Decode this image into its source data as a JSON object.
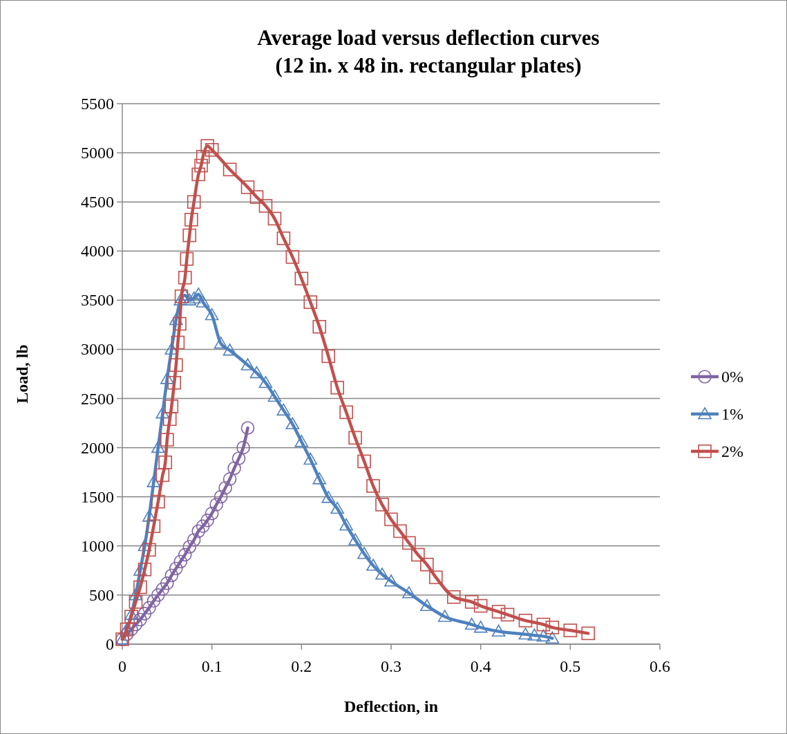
{
  "chart_data": {
    "type": "line",
    "title": "Average load versus deflection curves\n(12 in. x 48 in. rectangular plates)",
    "xlabel": "Deflection,  in",
    "ylabel": "Load,  lb",
    "xlim": [
      0,
      0.6
    ],
    "xticks": [
      0,
      0.1,
      0.2,
      0.3,
      0.4,
      0.5,
      0.6
    ],
    "ylim": [
      0,
      5500
    ],
    "yticks": [
      0,
      500,
      1000,
      1500,
      2000,
      2500,
      3000,
      3500,
      4000,
      4500,
      5000,
      5500
    ],
    "grid": "y",
    "legend": "right",
    "line_style": "solid",
    "series": [
      {
        "name": "0%",
        "color": "#8064a2",
        "marker": "circle",
        "x": [
          0,
          0.005,
          0.01,
          0.015,
          0.02,
          0.025,
          0.03,
          0.035,
          0.04,
          0.045,
          0.05,
          0.055,
          0.06,
          0.065,
          0.07,
          0.075,
          0.08,
          0.085,
          0.09,
          0.095,
          0.1,
          0.105,
          0.11,
          0.115,
          0.12,
          0.125,
          0.13,
          0.135,
          0.14
        ],
        "values": [
          50,
          100,
          150,
          200,
          250,
          310,
          370,
          440,
          500,
          560,
          620,
          700,
          770,
          840,
          910,
          990,
          1060,
          1150,
          1200,
          1260,
          1330,
          1420,
          1500,
          1590,
          1680,
          1790,
          1890,
          2000,
          2200
        ]
      },
      {
        "name": "1%",
        "color": "#4f81bd",
        "marker": "triangle",
        "x": [
          0,
          0.005,
          0.01,
          0.015,
          0.02,
          0.025,
          0.03,
          0.035,
          0.04,
          0.045,
          0.05,
          0.055,
          0.06,
          0.065,
          0.07,
          0.075,
          0.08,
          0.085,
          0.09,
          0.1,
          0.11,
          0.12,
          0.14,
          0.15,
          0.16,
          0.17,
          0.18,
          0.19,
          0.2,
          0.21,
          0.22,
          0.23,
          0.24,
          0.25,
          0.26,
          0.27,
          0.28,
          0.29,
          0.3,
          0.32,
          0.34,
          0.36,
          0.39,
          0.4,
          0.42,
          0.45,
          0.46,
          0.47,
          0.48
        ],
        "values": [
          50,
          150,
          300,
          500,
          750,
          1000,
          1300,
          1650,
          2000,
          2350,
          2700,
          3000,
          3300,
          3500,
          3550,
          3500,
          3520,
          3560,
          3480,
          3350,
          3060,
          2990,
          2840,
          2760,
          2660,
          2520,
          2380,
          2240,
          2060,
          1880,
          1680,
          1490,
          1380,
          1210,
          1060,
          920,
          800,
          710,
          640,
          520,
          390,
          280,
          200,
          170,
          130,
          100,
          90,
          80,
          60
        ]
      },
      {
        "name": "2%",
        "color": "#c0504d",
        "marker": "square",
        "x": [
          0,
          0.005,
          0.01,
          0.015,
          0.02,
          0.025,
          0.03,
          0.035,
          0.04,
          0.045,
          0.048,
          0.05,
          0.053,
          0.055,
          0.058,
          0.06,
          0.062,
          0.064,
          0.066,
          0.07,
          0.072,
          0.075,
          0.077,
          0.08,
          0.085,
          0.088,
          0.09,
          0.095,
          0.1,
          0.12,
          0.14,
          0.15,
          0.16,
          0.17,
          0.18,
          0.19,
          0.2,
          0.21,
          0.22,
          0.23,
          0.24,
          0.25,
          0.26,
          0.27,
          0.28,
          0.29,
          0.3,
          0.31,
          0.32,
          0.33,
          0.34,
          0.35,
          0.37,
          0.39,
          0.4,
          0.42,
          0.43,
          0.45,
          0.47,
          0.48,
          0.5,
          0.52
        ],
        "values": [
          50,
          150,
          280,
          430,
          580,
          760,
          960,
          1200,
          1450,
          1720,
          1850,
          2080,
          2290,
          2420,
          2660,
          2840,
          3070,
          3260,
          3540,
          3730,
          3920,
          4160,
          4320,
          4500,
          4780,
          4870,
          4960,
          5070,
          5030,
          4830,
          4650,
          4550,
          4460,
          4330,
          4130,
          3940,
          3720,
          3480,
          3230,
          2930,
          2610,
          2360,
          2100,
          1860,
          1610,
          1420,
          1270,
          1150,
          1030,
          910,
          810,
          680,
          480,
          430,
          390,
          330,
          300,
          240,
          200,
          170,
          140,
          110
        ]
      }
    ]
  }
}
